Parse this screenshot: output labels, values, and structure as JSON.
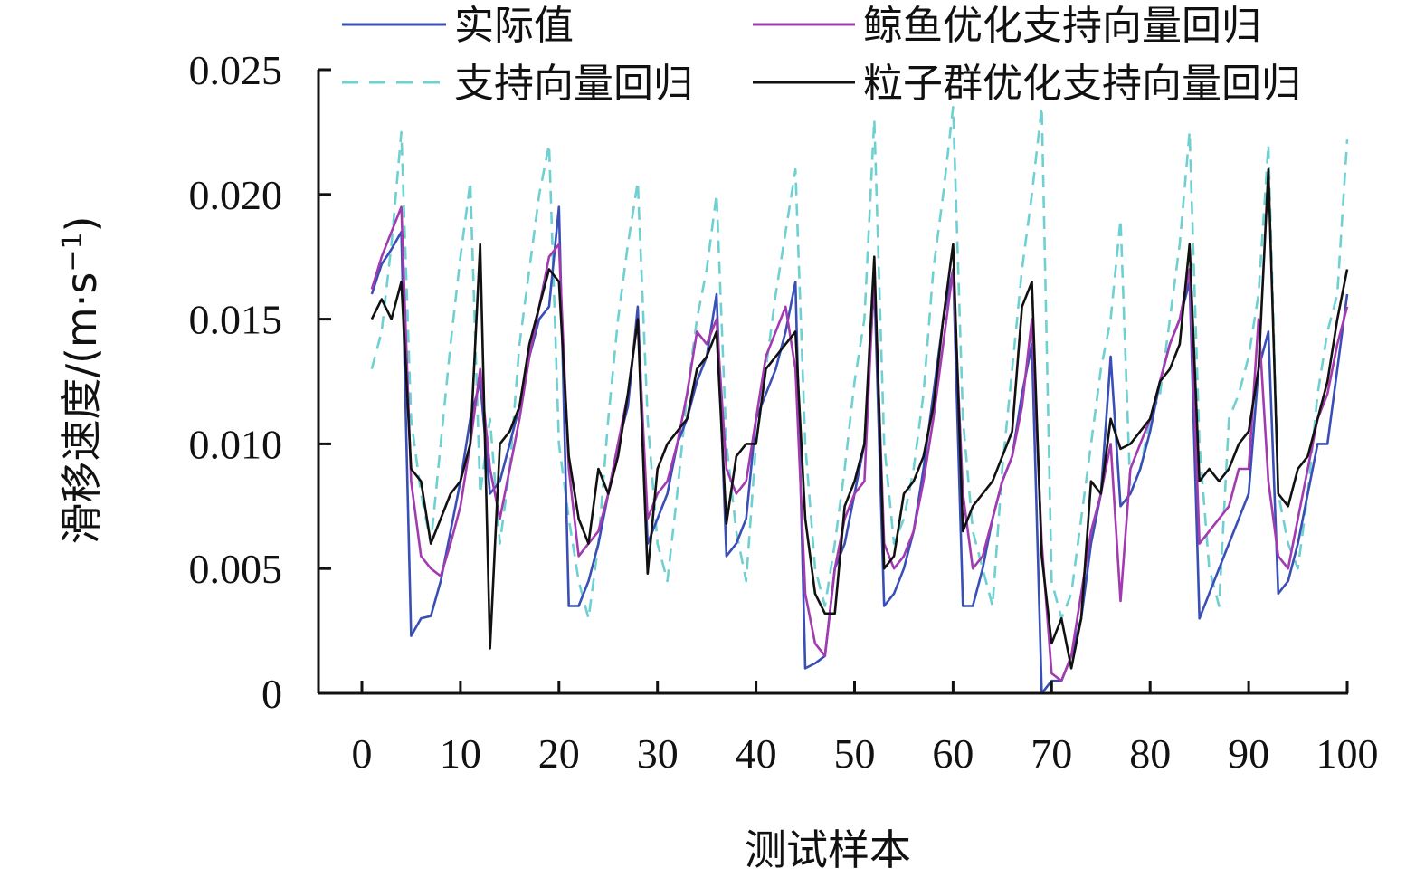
{
  "chart_data": {
    "type": "line",
    "title": "",
    "xlabel": "测试样本",
    "ylabel": "滑移速度/(m·s⁻¹)",
    "ylabel_parts": {
      "text": "滑移速度/(m·s",
      "sup": "−1",
      "close": ")"
    },
    "xlim": [
      0,
      100
    ],
    "ylim": [
      0,
      0.025
    ],
    "x_ticks": [
      0,
      10,
      20,
      30,
      40,
      50,
      60,
      70,
      80,
      90,
      100
    ],
    "x_tick_labels": [
      "0",
      "10",
      "20",
      "30",
      "40",
      "50",
      "60",
      "70",
      "80",
      "90",
      "100"
    ],
    "y_ticks": [
      0,
      0.005,
      0.01,
      0.015,
      0.02,
      0.025
    ],
    "y_tick_labels": [
      "0",
      "0.005",
      "0.010",
      "0.015",
      "0.020",
      "0.025"
    ],
    "grid": false,
    "legend_position": "top",
    "x": [
      1,
      2,
      3,
      4,
      5,
      6,
      7,
      8,
      9,
      10,
      11,
      12,
      13,
      14,
      15,
      16,
      17,
      18,
      19,
      20,
      21,
      22,
      23,
      24,
      25,
      26,
      27,
      28,
      29,
      30,
      31,
      32,
      33,
      34,
      35,
      36,
      37,
      38,
      39,
      40,
      41,
      42,
      43,
      44,
      45,
      46,
      47,
      48,
      49,
      50,
      51,
      52,
      53,
      54,
      55,
      56,
      57,
      58,
      59,
      60,
      61,
      62,
      63,
      64,
      65,
      66,
      67,
      68,
      69,
      70,
      71,
      72,
      73,
      74,
      75,
      76,
      77,
      78,
      79,
      80,
      81,
      82,
      83,
      84,
      85,
      86,
      87,
      88,
      89,
      90,
      91,
      92,
      93,
      94,
      95,
      96,
      97,
      98,
      99,
      100
    ],
    "series": [
      {
        "name": "实际值",
        "color": "#3a4fb5",
        "dash": "solid",
        "values": [
          0.016,
          0.0172,
          0.0178,
          0.0185,
          0.0023,
          0.003,
          0.0031,
          0.0045,
          0.0065,
          0.0085,
          0.011,
          0.0125,
          0.008,
          0.0085,
          0.01,
          0.0115,
          0.0135,
          0.015,
          0.0155,
          0.0195,
          0.0035,
          0.0035,
          0.0045,
          0.006,
          0.008,
          0.01,
          0.0115,
          0.0155,
          0.006,
          0.007,
          0.008,
          0.01,
          0.011,
          0.0125,
          0.0135,
          0.016,
          0.0055,
          0.006,
          0.007,
          0.011,
          0.012,
          0.013,
          0.0145,
          0.0165,
          0.001,
          0.0012,
          0.0015,
          0.005,
          0.006,
          0.008,
          0.01,
          0.0165,
          0.0035,
          0.004,
          0.005,
          0.0065,
          0.009,
          0.012,
          0.015,
          0.017,
          0.0035,
          0.0035,
          0.005,
          0.007,
          0.0085,
          0.0095,
          0.012,
          0.014,
          0.0,
          0.0005,
          0.0005,
          0.0015,
          0.003,
          0.006,
          0.008,
          0.0135,
          0.0075,
          0.008,
          0.009,
          0.0105,
          0.0125,
          0.014,
          0.015,
          0.0165,
          0.003,
          0.004,
          0.005,
          0.006,
          0.007,
          0.008,
          0.013,
          0.0145,
          0.004,
          0.0045,
          0.006,
          0.008,
          0.01,
          0.01,
          0.013,
          0.016
        ]
      },
      {
        "name": "鲸鱼优化支持向量回归",
        "color": "#a23bb0",
        "dash": "solid",
        "values": [
          0.0162,
          0.0175,
          0.0185,
          0.0195,
          0.0085,
          0.0055,
          0.005,
          0.0047,
          0.006,
          0.0075,
          0.01,
          0.013,
          0.009,
          0.007,
          0.009,
          0.011,
          0.0135,
          0.0155,
          0.0175,
          0.018,
          0.009,
          0.0055,
          0.006,
          0.0065,
          0.008,
          0.01,
          0.012,
          0.015,
          0.007,
          0.008,
          0.0085,
          0.01,
          0.012,
          0.0145,
          0.014,
          0.015,
          0.009,
          0.008,
          0.0085,
          0.011,
          0.0135,
          0.0145,
          0.0155,
          0.013,
          0.004,
          0.002,
          0.0015,
          0.005,
          0.007,
          0.008,
          0.0085,
          0.017,
          0.006,
          0.005,
          0.0055,
          0.0065,
          0.0085,
          0.011,
          0.014,
          0.017,
          0.008,
          0.005,
          0.0055,
          0.007,
          0.0085,
          0.0095,
          0.0115,
          0.015,
          0.006,
          0.0008,
          0.0005,
          0.0015,
          0.004,
          0.0065,
          0.008,
          0.01,
          0.0037,
          0.009,
          0.01,
          0.011,
          0.0125,
          0.014,
          0.015,
          0.017,
          0.006,
          0.0065,
          0.007,
          0.0075,
          0.009,
          0.009,
          0.015,
          0.0085,
          0.0055,
          0.005,
          0.007,
          0.009,
          0.011,
          0.012,
          0.014,
          0.0155
        ]
      },
      {
        "name": "支持向量回归",
        "color": "#6fd0d2",
        "dash": "dashed",
        "values": [
          0.013,
          0.0145,
          0.018,
          0.0225,
          0.011,
          0.008,
          0.006,
          0.01,
          0.014,
          0.0175,
          0.0205,
          0.008,
          0.011,
          0.006,
          0.009,
          0.014,
          0.017,
          0.02,
          0.022,
          0.01,
          0.007,
          0.0045,
          0.003,
          0.006,
          0.011,
          0.015,
          0.018,
          0.0205,
          0.011,
          0.006,
          0.0045,
          0.008,
          0.012,
          0.015,
          0.017,
          0.02,
          0.01,
          0.0065,
          0.0045,
          0.01,
          0.013,
          0.016,
          0.0185,
          0.021,
          0.01,
          0.005,
          0.0035,
          0.006,
          0.009,
          0.0125,
          0.015,
          0.023,
          0.01,
          0.006,
          0.007,
          0.009,
          0.012,
          0.017,
          0.02,
          0.0235,
          0.011,
          0.0065,
          0.005,
          0.0035,
          0.009,
          0.013,
          0.017,
          0.02,
          0.0235,
          0.0045,
          0.003,
          0.004,
          0.007,
          0.01,
          0.013,
          0.015,
          0.019,
          0.008,
          0.009,
          0.011,
          0.012,
          0.015,
          0.018,
          0.0225,
          0.01,
          0.005,
          0.0035,
          0.011,
          0.012,
          0.0135,
          0.016,
          0.022,
          0.008,
          0.006,
          0.005,
          0.008,
          0.012,
          0.0145,
          0.016,
          0.0222
        ]
      },
      {
        "name": "粒子群优化支持向量回归",
        "color": "#111111",
        "dash": "solid",
        "values": [
          0.015,
          0.0158,
          0.015,
          0.0165,
          0.009,
          0.0085,
          0.006,
          0.007,
          0.008,
          0.0085,
          0.01,
          0.018,
          0.0018,
          0.01,
          0.0105,
          0.0115,
          0.014,
          0.0155,
          0.017,
          0.0165,
          0.0095,
          0.007,
          0.006,
          0.009,
          0.008,
          0.0095,
          0.012,
          0.015,
          0.0048,
          0.009,
          0.01,
          0.0105,
          0.011,
          0.013,
          0.0135,
          0.0145,
          0.0068,
          0.0095,
          0.01,
          0.01,
          0.013,
          0.0135,
          0.014,
          0.0145,
          0.007,
          0.004,
          0.0032,
          0.0032,
          0.0075,
          0.0085,
          0.01,
          0.0175,
          0.005,
          0.0055,
          0.008,
          0.0085,
          0.0095,
          0.0115,
          0.015,
          0.018,
          0.0065,
          0.0075,
          0.008,
          0.0085,
          0.0095,
          0.0105,
          0.0155,
          0.0165,
          0.0055,
          0.002,
          0.003,
          0.001,
          0.003,
          0.0085,
          0.008,
          0.011,
          0.0098,
          0.01,
          0.0105,
          0.011,
          0.0125,
          0.013,
          0.014,
          0.018,
          0.0085,
          0.009,
          0.0085,
          0.009,
          0.01,
          0.0105,
          0.013,
          0.021,
          0.008,
          0.0075,
          0.009,
          0.0095,
          0.011,
          0.0125,
          0.015,
          0.017
        ]
      }
    ]
  }
}
